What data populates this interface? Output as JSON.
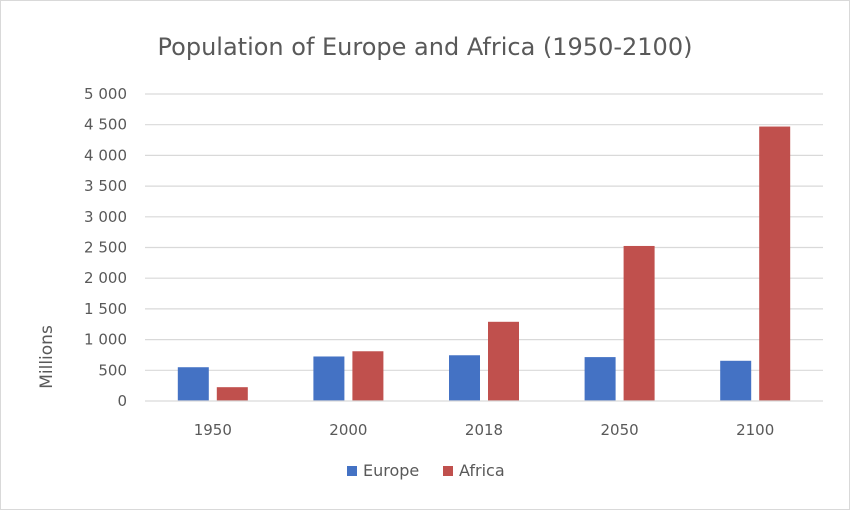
{
  "chart_data": {
    "type": "bar",
    "title": "Population of Europe and Africa (1950-2100)",
    "xlabel": "",
    "ylabel": "Millions",
    "ylim": [
      0,
      5000
    ],
    "ytick_values": [
      0,
      500,
      1000,
      1500,
      2000,
      2500,
      3000,
      3500,
      4000,
      4500,
      5000
    ],
    "ytick_labels": [
      "0",
      "500",
      "1 000",
      "1 500",
      "2 000",
      "2 500",
      "3 000",
      "3 500",
      "4 000",
      "4 500",
      "5 000"
    ],
    "categories": [
      "1950",
      "2000",
      "2018",
      "2050",
      "2100"
    ],
    "series": [
      {
        "name": "Europe",
        "color": "#4472C4",
        "values": [
          550,
          725,
          745,
          715,
          655
        ]
      },
      {
        "name": "Africa",
        "color": "#C0504D",
        "values": [
          225,
          810,
          1290,
          2525,
          4470
        ]
      }
    ],
    "grid": true,
    "legend_position": "bottom"
  }
}
